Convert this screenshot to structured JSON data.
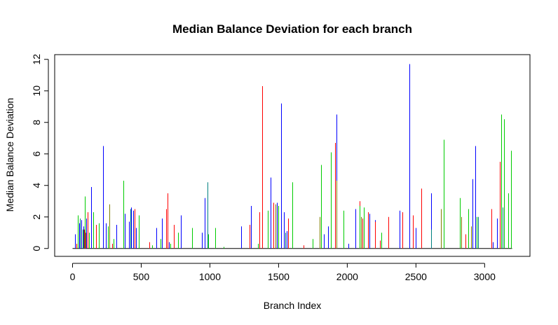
{
  "chart_data": {
    "type": "bar",
    "title": "Median Balance Deviation for each branch",
    "xlabel": "Branch Index",
    "ylabel": "Median Balance Deviation",
    "xlim": [
      -130,
      3330
    ],
    "ylim": [
      -0.5,
      12.3
    ],
    "xticks": [
      0,
      500,
      1000,
      1500,
      2000,
      2500,
      3000
    ],
    "yticks": [
      0,
      2,
      4,
      6,
      8,
      10,
      12
    ],
    "grid": false,
    "legend": "none",
    "colors": {
      "red": "#ff0000",
      "green": "#00cc00",
      "blue": "#0000ff",
      "teal": "#008080",
      "olive": "#808000",
      "axis": "#000000"
    },
    "series": [
      {
        "color": "blue",
        "points": [
          [
            20,
            0.9
          ],
          [
            50,
            1.6
          ],
          [
            65,
            1.8
          ],
          [
            80,
            1.4
          ],
          [
            100,
            1.9
          ],
          [
            135,
            3.9
          ],
          [
            220,
            6.5
          ],
          [
            240,
            1.6
          ],
          [
            320,
            1.5
          ],
          [
            380,
            2.2
          ],
          [
            410,
            1.7
          ],
          [
            425,
            2.6
          ],
          [
            440,
            2.4
          ],
          [
            460,
            1.3
          ],
          [
            610,
            1.3
          ],
          [
            650,
            1.9
          ],
          [
            700,
            0.4
          ],
          [
            790,
            2.1
          ],
          [
            940,
            1.0
          ],
          [
            960,
            3.2
          ],
          [
            1230,
            1.4
          ],
          [
            1300,
            2.7
          ],
          [
            1440,
            4.5
          ],
          [
            1490,
            2.9
          ],
          [
            1520,
            9.2
          ],
          [
            1540,
            2.3
          ],
          [
            1560,
            1.1
          ],
          [
            1830,
            0.9
          ],
          [
            1860,
            1.4
          ],
          [
            1920,
            8.5
          ],
          [
            2010,
            0.3
          ],
          [
            2060,
            2.5
          ],
          [
            2160,
            2.2
          ],
          [
            2200,
            1.8
          ],
          [
            2380,
            2.4
          ],
          [
            2450,
            11.7
          ],
          [
            2500,
            1.3
          ],
          [
            2610,
            3.5
          ],
          [
            2860,
            0.5
          ],
          [
            2910,
            4.4
          ],
          [
            2930,
            6.5
          ],
          [
            3060,
            0.4
          ],
          [
            3090,
            1.9
          ],
          [
            3130,
            2.5
          ]
        ]
      },
      {
        "color": "red",
        "points": [
          [
            30,
            0.3
          ],
          [
            85,
            1.2
          ],
          [
            95,
            1.0
          ],
          [
            110,
            2.3
          ],
          [
            170,
            1.5
          ],
          [
            270,
            2.0
          ],
          [
            290,
            0.3
          ],
          [
            450,
            2.5
          ],
          [
            560,
            0.4
          ],
          [
            690,
            3.5
          ],
          [
            680,
            2.5
          ],
          [
            740,
            1.5
          ],
          [
            1290,
            1.5
          ],
          [
            1360,
            2.3
          ],
          [
            1380,
            10.3
          ],
          [
            1460,
            2.9
          ],
          [
            1570,
            1.9
          ],
          [
            1680,
            0.2
          ],
          [
            1800,
            0.6
          ],
          [
            1910,
            6.7
          ],
          [
            2090,
            3.0
          ],
          [
            2110,
            1.9
          ],
          [
            2150,
            2.3
          ],
          [
            2200,
            1.7
          ],
          [
            2240,
            0.5
          ],
          [
            2300,
            2.0
          ],
          [
            2400,
            2.3
          ],
          [
            2480,
            2.1
          ],
          [
            2540,
            3.8
          ],
          [
            2860,
            0.9
          ],
          [
            2880,
            1.1
          ],
          [
            3050,
            2.5
          ],
          [
            3110,
            5.5
          ],
          [
            3170,
            1.1
          ]
        ]
      },
      {
        "color": "green",
        "points": [
          [
            40,
            2.1
          ],
          [
            75,
            1.2
          ],
          [
            90,
            3.3
          ],
          [
            120,
            1.0
          ],
          [
            150,
            2.3
          ],
          [
            190,
            1.6
          ],
          [
            260,
            1.4
          ],
          [
            300,
            0.6
          ],
          [
            370,
            4.3
          ],
          [
            420,
            1.1
          ],
          [
            480,
            2.1
          ],
          [
            580,
            0.2
          ],
          [
            640,
            0.6
          ],
          [
            710,
            0.3
          ],
          [
            770,
            1.0
          ],
          [
            870,
            1.3
          ],
          [
            990,
            0.9
          ],
          [
            1040,
            1.3
          ],
          [
            1100,
            0.1
          ],
          [
            1350,
            0.3
          ],
          [
            1420,
            2.4
          ],
          [
            1500,
            2.7
          ],
          [
            1600,
            4.2
          ],
          [
            1750,
            0.6
          ],
          [
            1810,
            5.3
          ],
          [
            1880,
            6.1
          ],
          [
            1970,
            2.4
          ],
          [
            2090,
            2.7
          ],
          [
            2120,
            2.6
          ],
          [
            2250,
            1.0
          ],
          [
            2700,
            6.9
          ],
          [
            2820,
            3.2
          ],
          [
            2880,
            2.5
          ],
          [
            2940,
            2.0
          ],
          [
            3120,
            8.5
          ],
          [
            3140,
            8.2
          ],
          [
            3170,
            3.5
          ],
          [
            3190,
            6.2
          ]
        ]
      },
      {
        "color": "teal",
        "points": [
          [
            55,
            1.9
          ],
          [
            420,
            2.5
          ],
          [
            980,
            4.2
          ],
          [
            1550,
            1.0
          ],
          [
            2610,
            1.2
          ],
          [
            2950,
            2.0
          ],
          [
            3130,
            2.6
          ]
        ]
      },
      {
        "color": "olive",
        "points": [
          [
            270,
            2.8
          ],
          [
            1480,
            2.8
          ],
          [
            1800,
            2.0
          ],
          [
            1920,
            4.3
          ],
          [
            2100,
            2.0
          ],
          [
            2680,
            2.5
          ],
          [
            2830,
            2.0
          ],
          [
            2900,
            1.4
          ]
        ]
      }
    ]
  }
}
